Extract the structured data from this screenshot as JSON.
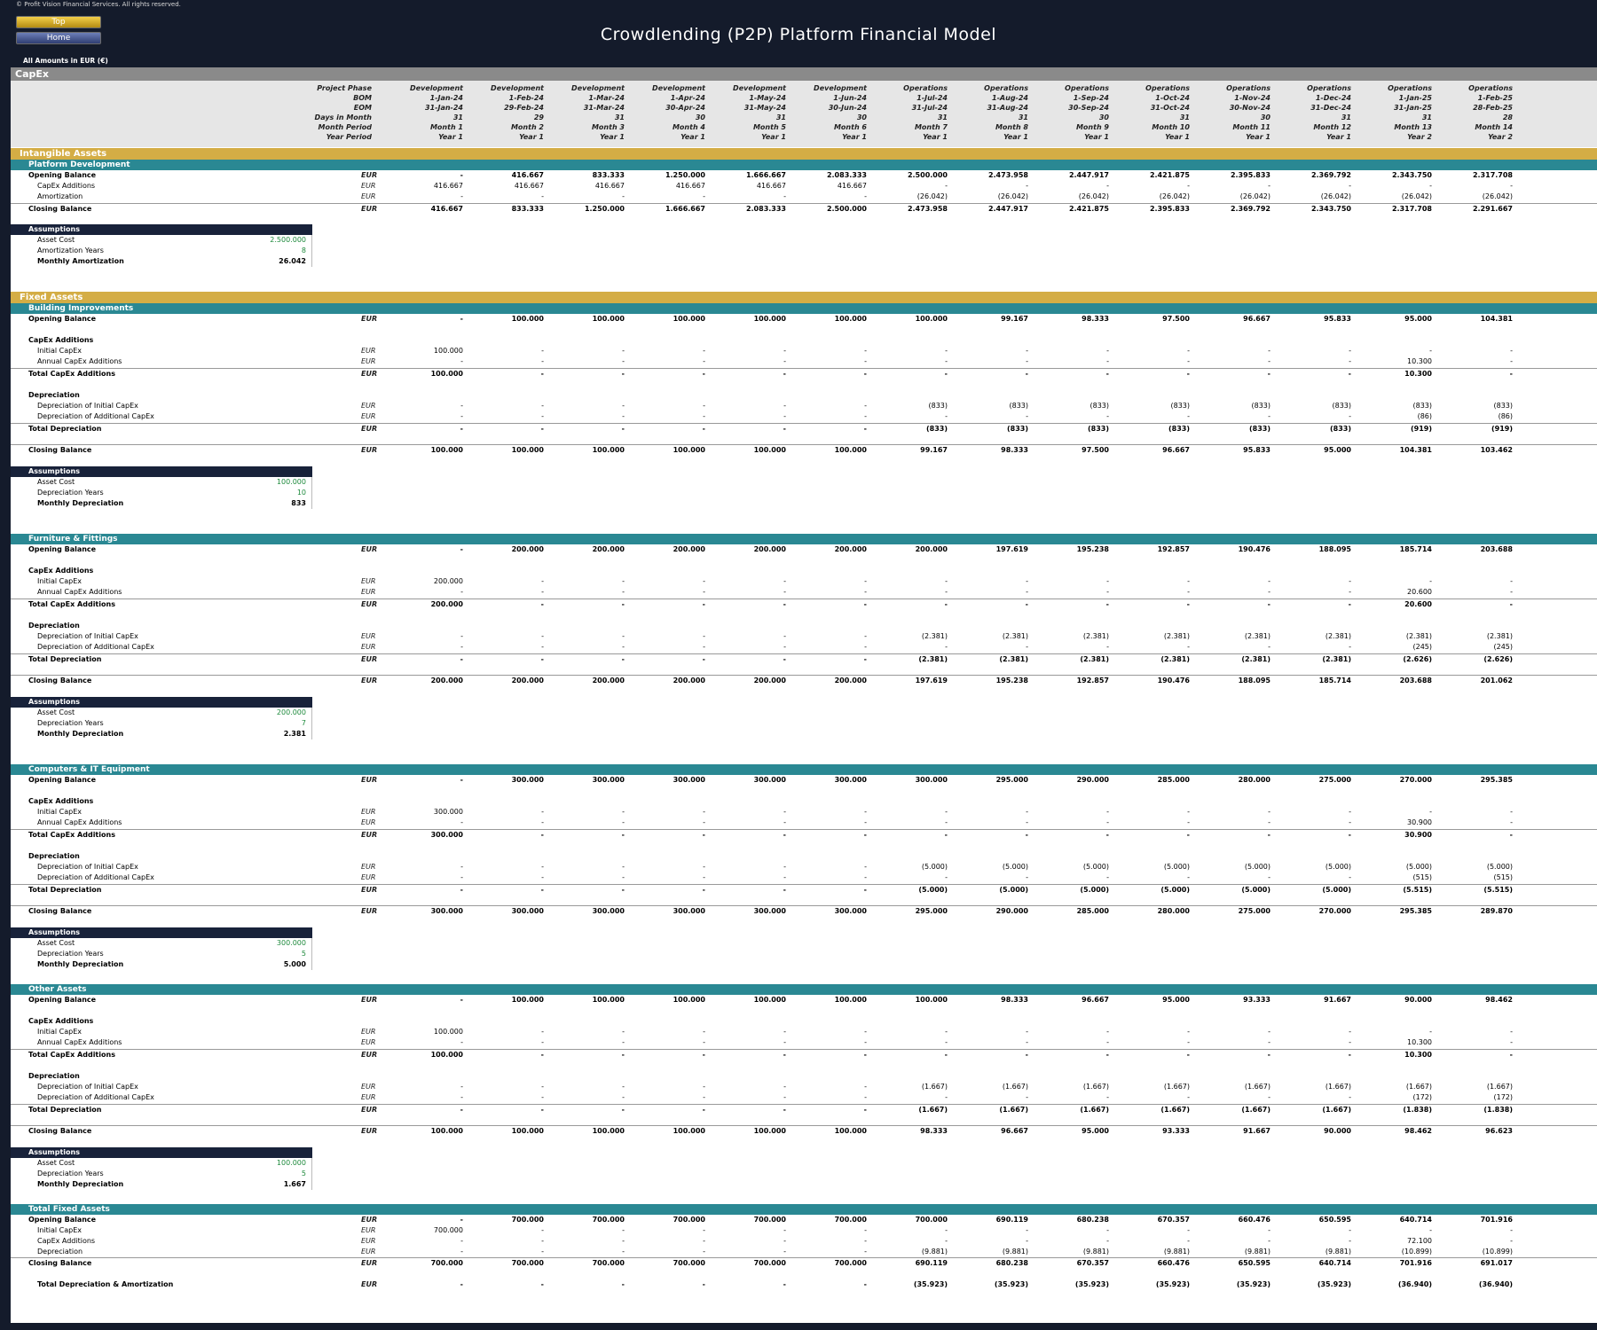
{
  "header": {
    "copyright": "© Profit Vision Financial Services. All rights reserved.",
    "top_button": "Top",
    "home_button": "Home",
    "title": "Crowdlending (P2P) Platform Financial Model",
    "amounts_note": "All Amounts in  EUR (€)"
  },
  "sheet_title": "CapEx",
  "unit": "EUR",
  "timeline": {
    "rows": [
      {
        "label": "Project Phase",
        "values": [
          "Development",
          "Development",
          "Development",
          "Development",
          "Development",
          "Development",
          "Operations",
          "Operations",
          "Operations",
          "Operations",
          "Operations",
          "Operations",
          "Operations",
          "Operations"
        ]
      },
      {
        "label": "BOM",
        "values": [
          "1-Jan-24",
          "1-Feb-24",
          "1-Mar-24",
          "1-Apr-24",
          "1-May-24",
          "1-Jun-24",
          "1-Jul-24",
          "1-Aug-24",
          "1-Sep-24",
          "1-Oct-24",
          "1-Nov-24",
          "1-Dec-24",
          "1-Jan-25",
          "1-Feb-25"
        ]
      },
      {
        "label": "EOM",
        "values": [
          "31-Jan-24",
          "29-Feb-24",
          "31-Mar-24",
          "30-Apr-24",
          "31-May-24",
          "30-Jun-24",
          "31-Jul-24",
          "31-Aug-24",
          "30-Sep-24",
          "31-Oct-24",
          "30-Nov-24",
          "31-Dec-24",
          "31-Jan-25",
          "28-Feb-25"
        ]
      },
      {
        "label": "Days in Month",
        "values": [
          "31",
          "29",
          "31",
          "30",
          "31",
          "30",
          "31",
          "31",
          "30",
          "31",
          "30",
          "31",
          "31",
          "28"
        ]
      },
      {
        "label": "Month Period",
        "values": [
          "Month 1",
          "Month 2",
          "Month 3",
          "Month 4",
          "Month 5",
          "Month 6",
          "Month 7",
          "Month 8",
          "Month 9",
          "Month 10",
          "Month 11",
          "Month 12",
          "Month 13",
          "Month 14"
        ]
      },
      {
        "label": "Year Period",
        "values": [
          "Year 1",
          "Year 1",
          "Year 1",
          "Year 1",
          "Year 1",
          "Year 1",
          "Year 1",
          "Year 1",
          "Year 1",
          "Year 1",
          "Year 1",
          "Year 1",
          "Year 2",
          "Year 2"
        ]
      }
    ]
  },
  "intangible": {
    "section_title": "Intangible Assets",
    "sub_title": "Platform Development",
    "rows": [
      {
        "label": "Opening Balance",
        "values": [
          "-",
          "416.667",
          "833.333",
          "1.250.000",
          "1.666.667",
          "2.083.333",
          "2.500.000",
          "2.473.958",
          "2.447.917",
          "2.421.875",
          "2.395.833",
          "2.369.792",
          "2.343.750",
          "2.317.708"
        ]
      },
      {
        "label": "CapEx Additions",
        "values": [
          "416.667",
          "416.667",
          "416.667",
          "416.667",
          "416.667",
          "416.667",
          "-",
          "-",
          "-",
          "-",
          "-",
          "-",
          "-",
          "-"
        ]
      },
      {
        "label": "Amortization",
        "values": [
          "-",
          "-",
          "-",
          "-",
          "-",
          "-",
          "(26.042)",
          "(26.042)",
          "(26.042)",
          "(26.042)",
          "(26.042)",
          "(26.042)",
          "(26.042)",
          "(26.042)"
        ]
      },
      {
        "label": "Closing Balance",
        "values": [
          "416.667",
          "833.333",
          "1.250.000",
          "1.666.667",
          "2.083.333",
          "2.500.000",
          "2.473.958",
          "2.447.917",
          "2.421.875",
          "2.395.833",
          "2.369.792",
          "2.343.750",
          "2.317.708",
          "2.291.667"
        ]
      }
    ],
    "assumptions": {
      "title": "Assumptions",
      "rows": [
        {
          "label": "Asset Cost",
          "value": "2.500.000"
        },
        {
          "label": "Amortization Years",
          "value": "8"
        },
        {
          "label": "Monthly Amortization",
          "value": "26.042"
        }
      ]
    }
  },
  "fixed": {
    "section_title": "Fixed Assets",
    "labels": {
      "opening": "Opening Balance",
      "capex_head": "CapEx Additions",
      "initial": "Initial CapEx",
      "annual": "Annual CapEx Additions",
      "total_capex": "Total CapEx Additions",
      "dep_head": "Depreciation",
      "dep_initial": "Depreciation of Initial CapEx",
      "dep_additional": "Depreciation of Additional CapEx",
      "total_dep": "Total Depreciation",
      "closing": "Closing Balance",
      "assumptions": "Assumptions",
      "asset_cost": "Asset Cost",
      "dep_years": "Depreciation Years",
      "monthly_dep": "Monthly Depreciation"
    },
    "assets": [
      {
        "name": "Building Improvements",
        "opening": [
          "-",
          "100.000",
          "100.000",
          "100.000",
          "100.000",
          "100.000",
          "100.000",
          "99.167",
          "98.333",
          "97.500",
          "96.667",
          "95.833",
          "95.000",
          "104.381"
        ],
        "initial": [
          "100.000",
          "-",
          "-",
          "-",
          "-",
          "-",
          "-",
          "-",
          "-",
          "-",
          "-",
          "-",
          "-",
          "-"
        ],
        "annual": [
          "-",
          "-",
          "-",
          "-",
          "-",
          "-",
          "-",
          "-",
          "-",
          "-",
          "-",
          "-",
          "10.300",
          "-"
        ],
        "total_capex": [
          "100.000",
          "-",
          "-",
          "-",
          "-",
          "-",
          "-",
          "-",
          "-",
          "-",
          "-",
          "-",
          "10.300",
          "-"
        ],
        "dep_initial": [
          "-",
          "-",
          "-",
          "-",
          "-",
          "-",
          "(833)",
          "(833)",
          "(833)",
          "(833)",
          "(833)",
          "(833)",
          "(833)",
          "(833)"
        ],
        "dep_additional": [
          "-",
          "-",
          "-",
          "-",
          "-",
          "-",
          "-",
          "-",
          "-",
          "-",
          "-",
          "-",
          "(86)",
          "(86)"
        ],
        "total_dep": [
          "-",
          "-",
          "-",
          "-",
          "-",
          "-",
          "(833)",
          "(833)",
          "(833)",
          "(833)",
          "(833)",
          "(833)",
          "(919)",
          "(919)"
        ],
        "closing": [
          "100.000",
          "100.000",
          "100.000",
          "100.000",
          "100.000",
          "100.000",
          "99.167",
          "98.333",
          "97.500",
          "96.667",
          "95.833",
          "95.000",
          "104.381",
          "103.462"
        ],
        "asset_cost": "100.000",
        "dep_years": "10",
        "monthly_dep": "833"
      },
      {
        "name": "Furniture & Fittings",
        "opening": [
          "-",
          "200.000",
          "200.000",
          "200.000",
          "200.000",
          "200.000",
          "200.000",
          "197.619",
          "195.238",
          "192.857",
          "190.476",
          "188.095",
          "185.714",
          "203.688"
        ],
        "initial": [
          "200.000",
          "-",
          "-",
          "-",
          "-",
          "-",
          "-",
          "-",
          "-",
          "-",
          "-",
          "-",
          "-",
          "-"
        ],
        "annual": [
          "-",
          "-",
          "-",
          "-",
          "-",
          "-",
          "-",
          "-",
          "-",
          "-",
          "-",
          "-",
          "20.600",
          "-"
        ],
        "total_capex": [
          "200.000",
          "-",
          "-",
          "-",
          "-",
          "-",
          "-",
          "-",
          "-",
          "-",
          "-",
          "-",
          "20.600",
          "-"
        ],
        "dep_initial": [
          "-",
          "-",
          "-",
          "-",
          "-",
          "-",
          "(2.381)",
          "(2.381)",
          "(2.381)",
          "(2.381)",
          "(2.381)",
          "(2.381)",
          "(2.381)",
          "(2.381)"
        ],
        "dep_additional": [
          "-",
          "-",
          "-",
          "-",
          "-",
          "-",
          "-",
          "-",
          "-",
          "-",
          "-",
          "-",
          "(245)",
          "(245)"
        ],
        "total_dep": [
          "-",
          "-",
          "-",
          "-",
          "-",
          "-",
          "(2.381)",
          "(2.381)",
          "(2.381)",
          "(2.381)",
          "(2.381)",
          "(2.381)",
          "(2.626)",
          "(2.626)"
        ],
        "closing": [
          "200.000",
          "200.000",
          "200.000",
          "200.000",
          "200.000",
          "200.000",
          "197.619",
          "195.238",
          "192.857",
          "190.476",
          "188.095",
          "185.714",
          "203.688",
          "201.062"
        ],
        "asset_cost": "200.000",
        "dep_years": "7",
        "monthly_dep": "2.381"
      },
      {
        "name": "Computers & IT Equipment",
        "opening": [
          "-",
          "300.000",
          "300.000",
          "300.000",
          "300.000",
          "300.000",
          "300.000",
          "295.000",
          "290.000",
          "285.000",
          "280.000",
          "275.000",
          "270.000",
          "295.385"
        ],
        "initial": [
          "300.000",
          "-",
          "-",
          "-",
          "-",
          "-",
          "-",
          "-",
          "-",
          "-",
          "-",
          "-",
          "-",
          "-"
        ],
        "annual": [
          "-",
          "-",
          "-",
          "-",
          "-",
          "-",
          "-",
          "-",
          "-",
          "-",
          "-",
          "-",
          "30.900",
          "-"
        ],
        "total_capex": [
          "300.000",
          "-",
          "-",
          "-",
          "-",
          "-",
          "-",
          "-",
          "-",
          "-",
          "-",
          "-",
          "30.900",
          "-"
        ],
        "dep_initial": [
          "-",
          "-",
          "-",
          "-",
          "-",
          "-",
          "(5.000)",
          "(5.000)",
          "(5.000)",
          "(5.000)",
          "(5.000)",
          "(5.000)",
          "(5.000)",
          "(5.000)"
        ],
        "dep_additional": [
          "-",
          "-",
          "-",
          "-",
          "-",
          "-",
          "-",
          "-",
          "-",
          "-",
          "-",
          "-",
          "(515)",
          "(515)"
        ],
        "total_dep": [
          "-",
          "-",
          "-",
          "-",
          "-",
          "-",
          "(5.000)",
          "(5.000)",
          "(5.000)",
          "(5.000)",
          "(5.000)",
          "(5.000)",
          "(5.515)",
          "(5.515)"
        ],
        "closing": [
          "300.000",
          "300.000",
          "300.000",
          "300.000",
          "300.000",
          "300.000",
          "295.000",
          "290.000",
          "285.000",
          "280.000",
          "275.000",
          "270.000",
          "295.385",
          "289.870"
        ],
        "asset_cost": "300.000",
        "dep_years": "5",
        "monthly_dep": "5.000"
      },
      {
        "name": "Other Assets",
        "opening": [
          "-",
          "100.000",
          "100.000",
          "100.000",
          "100.000",
          "100.000",
          "100.000",
          "98.333",
          "96.667",
          "95.000",
          "93.333",
          "91.667",
          "90.000",
          "98.462"
        ],
        "initial": [
          "100.000",
          "-",
          "-",
          "-",
          "-",
          "-",
          "-",
          "-",
          "-",
          "-",
          "-",
          "-",
          "-",
          "-"
        ],
        "annual": [
          "-",
          "-",
          "-",
          "-",
          "-",
          "-",
          "-",
          "-",
          "-",
          "-",
          "-",
          "-",
          "10.300",
          "-"
        ],
        "total_capex": [
          "100.000",
          "-",
          "-",
          "-",
          "-",
          "-",
          "-",
          "-",
          "-",
          "-",
          "-",
          "-",
          "10.300",
          "-"
        ],
        "dep_initial": [
          "-",
          "-",
          "-",
          "-",
          "-",
          "-",
          "(1.667)",
          "(1.667)",
          "(1.667)",
          "(1.667)",
          "(1.667)",
          "(1.667)",
          "(1.667)",
          "(1.667)"
        ],
        "dep_additional": [
          "-",
          "-",
          "-",
          "-",
          "-",
          "-",
          "-",
          "-",
          "-",
          "-",
          "-",
          "-",
          "(172)",
          "(172)"
        ],
        "total_dep": [
          "-",
          "-",
          "-",
          "-",
          "-",
          "-",
          "(1.667)",
          "(1.667)",
          "(1.667)",
          "(1.667)",
          "(1.667)",
          "(1.667)",
          "(1.838)",
          "(1.838)"
        ],
        "closing": [
          "100.000",
          "100.000",
          "100.000",
          "100.000",
          "100.000",
          "100.000",
          "98.333",
          "96.667",
          "95.000",
          "93.333",
          "91.667",
          "90.000",
          "98.462",
          "96.623"
        ],
        "asset_cost": "100.000",
        "dep_years": "5",
        "monthly_dep": "1.667"
      }
    ]
  },
  "total_fixed": {
    "title": "Total Fixed Assets",
    "rows": [
      {
        "label": "Opening Balance",
        "values": [
          "-",
          "700.000",
          "700.000",
          "700.000",
          "700.000",
          "700.000",
          "700.000",
          "690.119",
          "680.238",
          "670.357",
          "660.476",
          "650.595",
          "640.714",
          "701.916"
        ]
      },
      {
        "label": "Initial CapEx",
        "values": [
          "700.000",
          "-",
          "-",
          "-",
          "-",
          "-",
          "-",
          "-",
          "-",
          "-",
          "-",
          "-",
          "-",
          "-"
        ]
      },
      {
        "label": "CapEx Additions",
        "values": [
          "-",
          "-",
          "-",
          "-",
          "-",
          "-",
          "-",
          "-",
          "-",
          "-",
          "-",
          "-",
          "72.100",
          "-"
        ]
      },
      {
        "label": "Depreciation",
        "values": [
          "-",
          "-",
          "-",
          "-",
          "-",
          "-",
          "(9.881)",
          "(9.881)",
          "(9.881)",
          "(9.881)",
          "(9.881)",
          "(9.881)",
          "(10.899)",
          "(10.899)"
        ]
      },
      {
        "label": "Closing Balance",
        "values": [
          "700.000",
          "700.000",
          "700.000",
          "700.000",
          "700.000",
          "700.000",
          "690.119",
          "680.238",
          "670.357",
          "660.476",
          "650.595",
          "640.714",
          "701.916",
          "691.017"
        ]
      }
    ],
    "grand_total": {
      "label": "Total Depreciation & Amortization",
      "values": [
        "-",
        "-",
        "-",
        "-",
        "-",
        "-",
        "(35.923)",
        "(35.923)",
        "(35.923)",
        "(35.923)",
        "(35.923)",
        "(35.923)",
        "(36.940)",
        "(36.940)"
      ]
    }
  }
}
